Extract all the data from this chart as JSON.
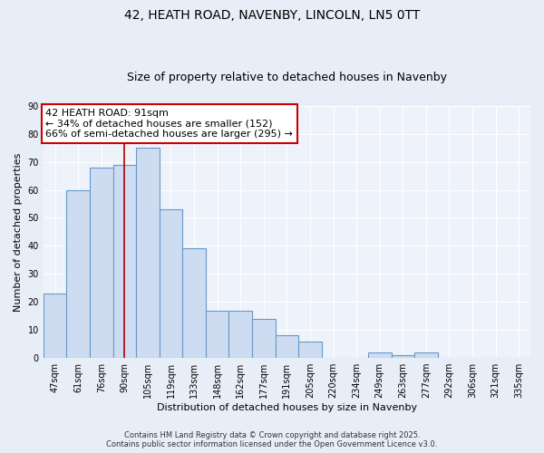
{
  "title": "42, HEATH ROAD, NAVENBY, LINCOLN, LN5 0TT",
  "subtitle": "Size of property relative to detached houses in Navenby",
  "xlabel": "Distribution of detached houses by size in Navenby",
  "ylabel": "Number of detached properties",
  "categories": [
    "47sqm",
    "61sqm",
    "76sqm",
    "90sqm",
    "105sqm",
    "119sqm",
    "133sqm",
    "148sqm",
    "162sqm",
    "177sqm",
    "191sqm",
    "205sqm",
    "220sqm",
    "234sqm",
    "249sqm",
    "263sqm",
    "277sqm",
    "292sqm",
    "306sqm",
    "321sqm",
    "335sqm"
  ],
  "values": [
    23,
    60,
    68,
    69,
    75,
    53,
    39,
    17,
    17,
    14,
    8,
    6,
    0,
    0,
    2,
    1,
    2,
    0,
    0,
    0,
    0
  ],
  "bar_color": "#cddcf0",
  "bar_edge_color": "#6699cc",
  "vline_color": "#aa0000",
  "vline_pos": 3.0,
  "annotation_text_line1": "42 HEATH ROAD: 91sqm",
  "annotation_text_line2": "← 34% of detached houses are smaller (152)",
  "annotation_text_line3": "66% of semi-detached houses are larger (295) →",
  "annotation_box_color": "#ffffff",
  "annotation_box_edge_color": "#cc0000",
  "ylim": [
    0,
    90
  ],
  "yticks": [
    0,
    10,
    20,
    30,
    40,
    50,
    60,
    70,
    80,
    90
  ],
  "footer1": "Contains HM Land Registry data © Crown copyright and database right 2025.",
  "footer2": "Contains public sector information licensed under the Open Government Licence v3.0.",
  "bg_color": "#e8eef8",
  "plot_bg_color": "#eef2fa",
  "grid_color": "#ffffff",
  "title_fontsize": 10,
  "subtitle_fontsize": 9,
  "ylabel_fontsize": 8,
  "xlabel_fontsize": 8,
  "tick_fontsize": 7,
  "annotation_fontsize": 8,
  "footer_fontsize": 6
}
